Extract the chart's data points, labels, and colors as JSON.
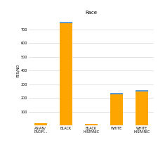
{
  "title": "Race",
  "ylabel": "YES/NO",
  "categories": [
    "ASIAN/\nPACIFI...",
    "BLACK",
    "BLACK\nHISPANIC",
    "WHITE",
    "WHITE\nHISPANIC"
  ],
  "orange_values": [
    15,
    745,
    13,
    228,
    248
  ],
  "blue_values": [
    0,
    12,
    0,
    10,
    10
  ],
  "orange_color": "#FFA500",
  "blue_color": "#5B9BD5",
  "ylim": [
    0,
    800
  ],
  "yticks": [
    100,
    200,
    300,
    400,
    500,
    600,
    700
  ],
  "bg_color": "#FFFFFF",
  "grid_color": "#D8D8D8",
  "bar_width": 0.5,
  "title_fontsize": 5.0,
  "tick_fontsize": 3.5,
  "ylabel_fontsize": 3.8
}
